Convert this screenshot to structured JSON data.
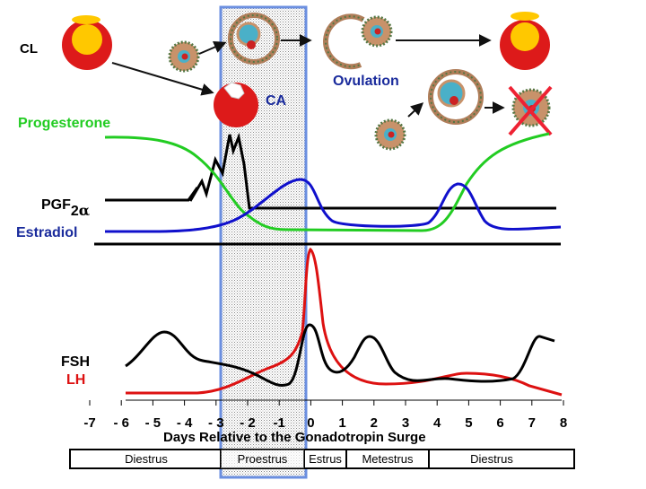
{
  "labels": {
    "cl": "CL",
    "ca": "CA",
    "ovulation": "Ovulation",
    "progesterone": "Progesterone",
    "pgf_main": "PGF",
    "pgf_sub": "2",
    "pgf_greek": "α",
    "estradiol": "Estradiol",
    "fsh": "FSH",
    "lh": "LH"
  },
  "colors": {
    "progesterone": "#22cc22",
    "estradiol": "#1010cc",
    "lh": "#dd1111",
    "fsh": "#000000",
    "pgf": "#000000",
    "label_blue": "#1a2b9c",
    "label_red": "#dd1111",
    "proestrus_box": "#6b8fe0"
  },
  "axis": {
    "ticks": [
      "-7",
      "- 6",
      "- 5",
      "- 4",
      "- 3",
      "- 2",
      "-1",
      "0",
      "1",
      "2",
      "3",
      "4",
      "5",
      "6",
      "7",
      "8"
    ],
    "title": "Days Relative to the Gonadotropin Surge"
  },
  "phases": [
    "Diestrus",
    "Proestrus",
    "Estrus",
    "Metestrus",
    "Diestrus"
  ],
  "icons": [
    "corpus-luteum-icon",
    "follicle-icon",
    "ruptured-follicle-icon",
    "oocyte-icon",
    "regressing-corpus-luteum-icon"
  ]
}
